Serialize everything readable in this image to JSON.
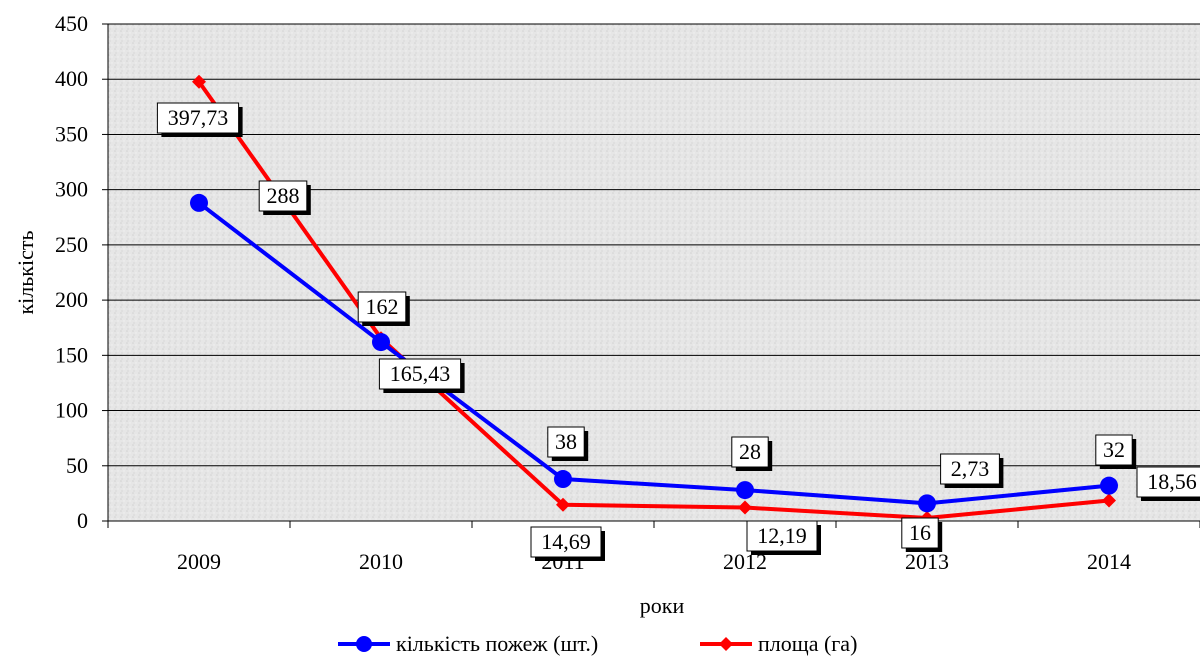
{
  "chart_data": {
    "type": "line",
    "categories": [
      "2009",
      "2010",
      "2011",
      "2012",
      "2013",
      "2014"
    ],
    "xlabel": "роки",
    "ylabel": "кількість",
    "ylim": [
      0,
      450
    ],
    "yticks": [
      0,
      50,
      100,
      150,
      200,
      250,
      300,
      350,
      400,
      450
    ],
    "grid": true,
    "legend_position": "bottom",
    "series": [
      {
        "name": "кількість пожеж (шт.)",
        "color": "#0000ff",
        "marker": "circle",
        "values": [
          288,
          162,
          38,
          28,
          16,
          32
        ],
        "labels": [
          "288",
          "162",
          "38",
          "28",
          "16",
          "32"
        ]
      },
      {
        "name": "площа (га)",
        "color": "#ff0000",
        "marker": "diamond",
        "values": [
          397.73,
          165.43,
          14.69,
          12.19,
          2.73,
          18.56
        ],
        "labels": [
          "397,73",
          "165,43",
          "14,69",
          "12,19",
          "2,73",
          "18,56"
        ]
      }
    ]
  }
}
